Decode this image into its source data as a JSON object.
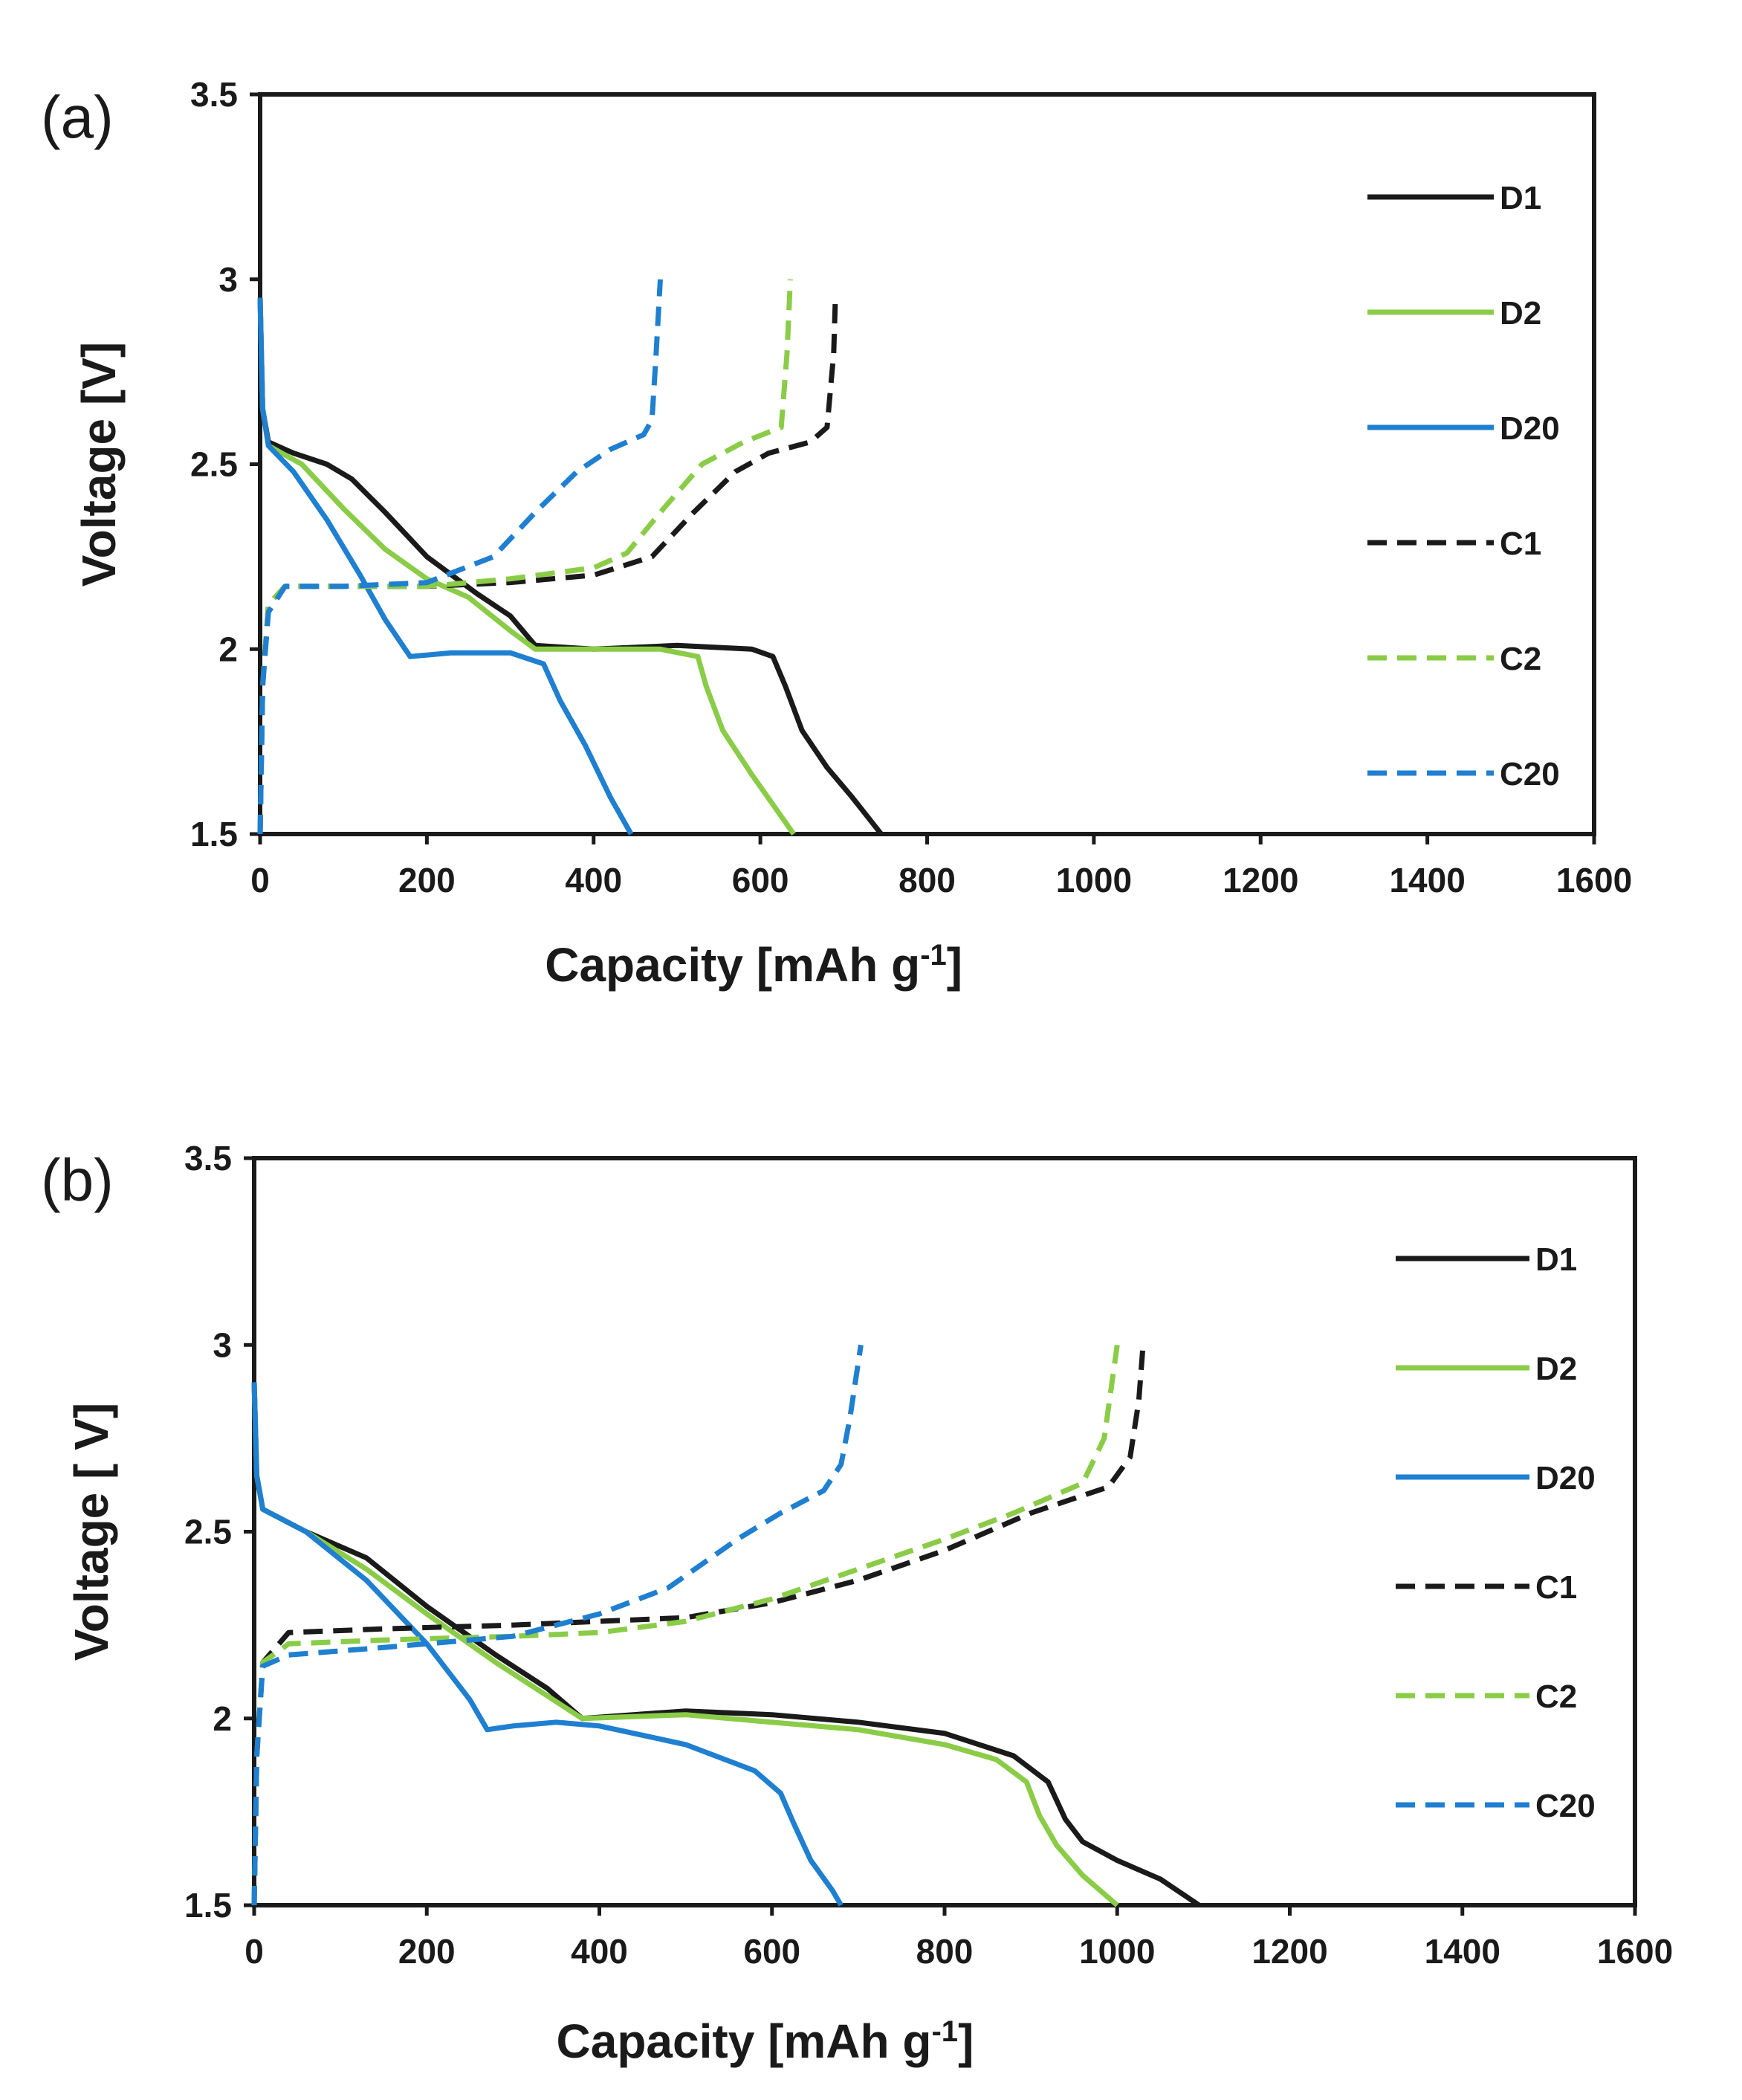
{
  "colors": {
    "black": "#1a1a1a",
    "green": "#8acc47",
    "blue": "#1f7fd0"
  },
  "chart_data": [
    {
      "type": "line",
      "panel_label": "(a)",
      "xlabel": "Capacity [mAh g",
      "xlabel_sup": "-1",
      "xlabel_close": "]",
      "ylabel": "Voltage [V]",
      "xlim": [
        0,
        1600
      ],
      "ylim": [
        1.5,
        3.5
      ],
      "xticks": [
        "0",
        "200",
        "400",
        "600",
        "800",
        "1000",
        "1200",
        "1400",
        "1600"
      ],
      "yticks": [
        "1.5",
        "2",
        "2.5",
        "3",
        "3.5"
      ],
      "legend_position": "right",
      "series": [
        {
          "name": "D1",
          "color": "black",
          "dash": false,
          "points": [
            [
              0,
              2.95
            ],
            [
              3,
              2.65
            ],
            [
              10,
              2.56
            ],
            [
              40,
              2.53
            ],
            [
              80,
              2.5
            ],
            [
              110,
              2.46
            ],
            [
              150,
              2.37
            ],
            [
              200,
              2.25
            ],
            [
              260,
              2.15
            ],
            [
              300,
              2.09
            ],
            [
              330,
              2.01
            ],
            [
              400,
              2.0
            ],
            [
              500,
              2.01
            ],
            [
              590,
              2.0
            ],
            [
              615,
              1.98
            ],
            [
              630,
              1.9
            ],
            [
              650,
              1.78
            ],
            [
              680,
              1.68
            ],
            [
              710,
              1.6
            ],
            [
              745,
              1.5
            ]
          ]
        },
        {
          "name": "D2",
          "color": "green",
          "dash": false,
          "points": [
            [
              0,
              2.95
            ],
            [
              3,
              2.65
            ],
            [
              10,
              2.55
            ],
            [
              50,
              2.5
            ],
            [
              100,
              2.38
            ],
            [
              150,
              2.27
            ],
            [
              200,
              2.19
            ],
            [
              250,
              2.14
            ],
            [
              300,
              2.05
            ],
            [
              330,
              2.0
            ],
            [
              400,
              2.0
            ],
            [
              480,
              2.0
            ],
            [
              525,
              1.98
            ],
            [
              535,
              1.9
            ],
            [
              555,
              1.78
            ],
            [
              590,
              1.66
            ],
            [
              640,
              1.5
            ]
          ]
        },
        {
          "name": "D20",
          "color": "blue",
          "dash": false,
          "points": [
            [
              0,
              2.95
            ],
            [
              3,
              2.65
            ],
            [
              10,
              2.55
            ],
            [
              40,
              2.48
            ],
            [
              80,
              2.35
            ],
            [
              120,
              2.2
            ],
            [
              150,
              2.08
            ],
            [
              180,
              1.98
            ],
            [
              230,
              1.99
            ],
            [
              300,
              1.99
            ],
            [
              340,
              1.96
            ],
            [
              360,
              1.86
            ],
            [
              390,
              1.74
            ],
            [
              420,
              1.6
            ],
            [
              445,
              1.5
            ]
          ]
        },
        {
          "name": "C1",
          "color": "black",
          "dash": true,
          "points": [
            [
              0,
              1.5
            ],
            [
              3,
              1.9
            ],
            [
              10,
              2.12
            ],
            [
              30,
              2.17
            ],
            [
              100,
              2.17
            ],
            [
              200,
              2.17
            ],
            [
              300,
              2.18
            ],
            [
              400,
              2.2
            ],
            [
              470,
              2.25
            ],
            [
              520,
              2.37
            ],
            [
              570,
              2.48
            ],
            [
              610,
              2.53
            ],
            [
              660,
              2.56
            ],
            [
              680,
              2.6
            ],
            [
              688,
              2.8
            ],
            [
              690,
              2.95
            ]
          ]
        },
        {
          "name": "C2",
          "color": "green",
          "dash": true,
          "points": [
            [
              0,
              1.5
            ],
            [
              3,
              1.9
            ],
            [
              10,
              2.12
            ],
            [
              30,
              2.17
            ],
            [
              100,
              2.17
            ],
            [
              200,
              2.17
            ],
            [
              300,
              2.19
            ],
            [
              400,
              2.22
            ],
            [
              440,
              2.26
            ],
            [
              480,
              2.37
            ],
            [
              530,
              2.5
            ],
            [
              580,
              2.56
            ],
            [
              625,
              2.6
            ],
            [
              632,
              2.8
            ],
            [
              636,
              3.0
            ]
          ]
        },
        {
          "name": "C20",
          "color": "blue",
          "dash": true,
          "points": [
            [
              0,
              1.5
            ],
            [
              3,
              1.9
            ],
            [
              10,
              2.1
            ],
            [
              30,
              2.17
            ],
            [
              100,
              2.17
            ],
            [
              200,
              2.18
            ],
            [
              280,
              2.25
            ],
            [
              330,
              2.37
            ],
            [
              380,
              2.48
            ],
            [
              420,
              2.54
            ],
            [
              460,
              2.58
            ],
            [
              470,
              2.62
            ],
            [
              475,
              2.8
            ],
            [
              480,
              3.0
            ]
          ]
        }
      ]
    },
    {
      "type": "line",
      "panel_label": "(b)",
      "xlabel": "Capacity [mAh g",
      "xlabel_sup": "-1",
      "xlabel_close": "]",
      "ylabel": "Voltage [ V]",
      "xlim": [
        0,
        1600
      ],
      "ylim": [
        1.5,
        3.5
      ],
      "xticks": [
        "0",
        "200",
        "400",
        "600",
        "800",
        "1000",
        "1200",
        "1400",
        "1600"
      ],
      "yticks": [
        "1.5",
        "2",
        "2.5",
        "3",
        "3.5"
      ],
      "legend_position": "right",
      "series": [
        {
          "name": "D1",
          "color": "black",
          "dash": false,
          "points": [
            [
              0,
              2.9
            ],
            [
              3,
              2.65
            ],
            [
              10,
              2.56
            ],
            [
              60,
              2.5
            ],
            [
              130,
              2.43
            ],
            [
              200,
              2.3
            ],
            [
              280,
              2.17
            ],
            [
              340,
              2.08
            ],
            [
              380,
              2.0
            ],
            [
              500,
              2.02
            ],
            [
              600,
              2.01
            ],
            [
              700,
              1.99
            ],
            [
              800,
              1.96
            ],
            [
              880,
              1.9
            ],
            [
              920,
              1.83
            ],
            [
              940,
              1.73
            ],
            [
              960,
              1.67
            ],
            [
              1000,
              1.62
            ],
            [
              1050,
              1.57
            ],
            [
              1095,
              1.5
            ]
          ]
        },
        {
          "name": "D2",
          "color": "green",
          "dash": false,
          "points": [
            [
              0,
              2.9
            ],
            [
              3,
              2.65
            ],
            [
              10,
              2.56
            ],
            [
              60,
              2.5
            ],
            [
              130,
              2.4
            ],
            [
              200,
              2.28
            ],
            [
              280,
              2.15
            ],
            [
              340,
              2.06
            ],
            [
              380,
              2.0
            ],
            [
              500,
              2.01
            ],
            [
              600,
              1.99
            ],
            [
              700,
              1.97
            ],
            [
              800,
              1.93
            ],
            [
              860,
              1.89
            ],
            [
              895,
              1.83
            ],
            [
              910,
              1.74
            ],
            [
              930,
              1.66
            ],
            [
              960,
              1.58
            ],
            [
              1000,
              1.5
            ]
          ]
        },
        {
          "name": "D20",
          "color": "blue",
          "dash": false,
          "points": [
            [
              0,
              2.9
            ],
            [
              3,
              2.65
            ],
            [
              10,
              2.56
            ],
            [
              60,
              2.5
            ],
            [
              130,
              2.37
            ],
            [
              200,
              2.2
            ],
            [
              250,
              2.05
            ],
            [
              270,
              1.97
            ],
            [
              300,
              1.98
            ],
            [
              350,
              1.99
            ],
            [
              400,
              1.98
            ],
            [
              500,
              1.93
            ],
            [
              580,
              1.86
            ],
            [
              610,
              1.8
            ],
            [
              625,
              1.72
            ],
            [
              645,
              1.62
            ],
            [
              670,
              1.54
            ],
            [
              680,
              1.5
            ]
          ]
        },
        {
          "name": "C1",
          "color": "black",
          "dash": true,
          "points": [
            [
              0,
              1.5
            ],
            [
              3,
              1.9
            ],
            [
              10,
              2.15
            ],
            [
              40,
              2.23
            ],
            [
              150,
              2.24
            ],
            [
              300,
              2.25
            ],
            [
              400,
              2.26
            ],
            [
              500,
              2.27
            ],
            [
              600,
              2.31
            ],
            [
              700,
              2.37
            ],
            [
              800,
              2.45
            ],
            [
              900,
              2.55
            ],
            [
              990,
              2.62
            ],
            [
              1015,
              2.7
            ],
            [
              1025,
              2.85
            ],
            [
              1030,
              3.0
            ]
          ]
        },
        {
          "name": "C2",
          "color": "green",
          "dash": true,
          "points": [
            [
              0,
              1.5
            ],
            [
              3,
              1.9
            ],
            [
              10,
              2.15
            ],
            [
              40,
              2.2
            ],
            [
              150,
              2.21
            ],
            [
              300,
              2.22
            ],
            [
              400,
              2.23
            ],
            [
              500,
              2.26
            ],
            [
              600,
              2.32
            ],
            [
              700,
              2.4
            ],
            [
              800,
              2.48
            ],
            [
              880,
              2.55
            ],
            [
              960,
              2.63
            ],
            [
              985,
              2.75
            ],
            [
              1000,
              3.0
            ]
          ]
        },
        {
          "name": "C20",
          "color": "blue",
          "dash": true,
          "points": [
            [
              0,
              1.5
            ],
            [
              3,
              1.9
            ],
            [
              10,
              2.14
            ],
            [
              40,
              2.17
            ],
            [
              150,
              2.19
            ],
            [
              300,
              2.22
            ],
            [
              400,
              2.28
            ],
            [
              480,
              2.35
            ],
            [
              560,
              2.48
            ],
            [
              610,
              2.55
            ],
            [
              660,
              2.61
            ],
            [
              680,
              2.68
            ],
            [
              690,
              2.8
            ],
            [
              703,
              3.0
            ]
          ]
        }
      ]
    }
  ]
}
